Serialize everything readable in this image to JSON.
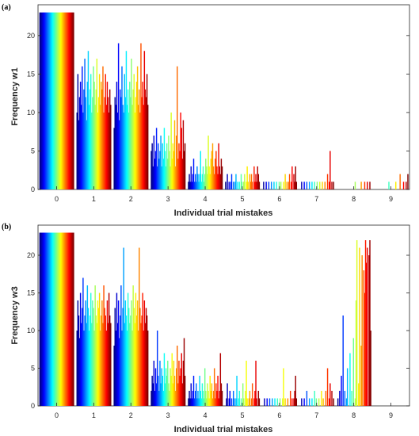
{
  "chart_data": [
    {
      "type": "bar",
      "panel_label": "(a)",
      "xlabel": "Individual trial mistakes",
      "ylabel": "Frequency w1",
      "categories": [
        "0",
        "1",
        "2",
        "3",
        "4",
        "5",
        "6",
        "7",
        "8",
        "9"
      ],
      "ylim": [
        0,
        24
      ],
      "yticks": [
        "0",
        "5",
        "10",
        "15",
        "20"
      ],
      "grid": false,
      "series_count": 40,
      "colormap": "jet (blue to dark red)",
      "bin_profiles": [
        [
          23,
          23,
          23,
          23,
          23,
          23,
          23,
          23,
          23,
          23,
          23,
          23,
          23,
          23,
          23,
          23,
          23,
          23,
          23,
          23,
          23,
          23,
          23,
          23,
          23,
          23,
          23,
          23,
          23,
          23,
          23,
          23,
          23,
          23,
          23,
          23,
          23,
          23,
          23,
          23
        ],
        [
          10,
          15,
          9,
          12,
          14,
          11,
          16,
          10,
          13,
          17,
          12,
          9,
          14,
          18,
          11,
          13,
          15,
          10,
          12,
          16,
          14,
          11,
          13,
          17,
          10,
          12,
          15,
          11,
          14,
          13,
          16,
          10,
          12,
          15,
          11,
          14,
          12,
          10,
          13,
          11
        ],
        [
          8,
          12,
          11,
          14,
          10,
          19,
          9,
          13,
          12,
          16,
          11,
          10,
          15,
          12,
          18,
          11,
          13,
          10,
          14,
          12,
          17,
          11,
          13,
          15,
          10,
          12,
          14,
          16,
          11,
          13,
          10,
          19,
          12,
          14,
          11,
          18,
          13,
          12,
          15,
          11
        ],
        [
          5,
          6,
          3,
          7,
          4,
          5,
          8,
          3,
          6,
          4,
          5,
          7,
          3,
          6,
          4,
          8,
          5,
          3,
          6,
          4,
          7,
          5,
          3,
          10,
          4,
          6,
          5,
          9,
          3,
          7,
          16,
          4,
          6,
          5,
          10,
          8,
          4,
          9,
          5,
          6
        ],
        [
          1,
          2,
          1,
          3,
          1,
          2,
          4,
          1,
          2,
          1,
          3,
          2,
          1,
          2,
          5,
          1,
          2,
          3,
          1,
          2,
          4,
          3,
          2,
          7,
          3,
          2,
          4,
          5,
          6,
          3,
          2,
          4,
          5,
          3,
          2,
          6,
          3,
          2,
          4,
          3
        ],
        [
          1,
          0,
          2,
          0,
          1,
          0,
          1,
          2,
          0,
          1,
          0,
          1,
          2,
          0,
          1,
          0,
          1,
          0,
          2,
          1,
          0,
          1,
          2,
          0,
          1,
          3,
          1,
          0,
          2,
          1,
          2,
          1,
          0,
          3,
          1,
          2,
          1,
          3,
          2,
          1
        ],
        [
          0,
          1,
          0,
          0,
          1,
          0,
          0,
          1,
          0,
          0,
          1,
          0,
          0,
          1,
          0,
          0,
          1,
          0,
          0,
          1,
          0,
          1,
          0,
          0,
          1,
          0,
          2,
          0,
          1,
          0,
          1,
          2,
          0,
          1,
          3,
          0,
          2,
          1,
          3,
          1
        ],
        [
          0,
          0,
          1,
          0,
          0,
          1,
          0,
          0,
          1,
          0,
          0,
          1,
          0,
          0,
          1,
          0,
          0,
          1,
          0,
          0,
          1,
          0,
          0,
          1,
          0,
          0,
          1,
          0,
          0,
          1,
          0,
          0,
          2,
          0,
          1,
          5,
          0,
          1,
          0,
          1
        ],
        [
          0,
          0,
          0,
          0,
          0,
          0,
          0,
          0,
          0,
          0,
          0,
          0,
          0,
          0,
          0,
          0,
          0,
          0,
          0,
          0,
          0,
          1,
          0,
          0,
          0,
          0,
          0,
          0,
          1,
          0,
          0,
          0,
          1,
          0,
          0,
          1,
          0,
          0,
          1,
          0
        ],
        [
          0,
          0,
          0,
          0,
          0,
          0,
          0,
          0,
          0,
          0,
          0,
          0,
          0,
          0,
          0,
          0,
          0,
          1,
          0,
          0,
          0,
          0,
          0,
          0,
          0,
          1,
          0,
          0,
          0,
          0,
          2,
          0,
          0,
          0,
          1,
          0,
          0,
          1,
          0,
          2
        ]
      ]
    },
    {
      "type": "bar",
      "panel_label": "(b)",
      "xlabel": "Individual trial mistakes",
      "ylabel": "Frequency w3",
      "categories": [
        "0",
        "1",
        "2",
        "3",
        "4",
        "5",
        "6",
        "7",
        "8",
        "9"
      ],
      "ylim": [
        0,
        24
      ],
      "yticks": [
        "0",
        "5",
        "10",
        "15",
        "20"
      ],
      "grid": false,
      "series_count": 40,
      "colormap": "jet (blue to dark red)",
      "bin_profiles": [
        [
          23,
          23,
          23,
          23,
          23,
          23,
          23,
          23,
          23,
          23,
          23,
          23,
          23,
          23,
          23,
          23,
          23,
          23,
          23,
          23,
          23,
          23,
          23,
          23,
          23,
          23,
          23,
          23,
          23,
          23,
          23,
          23,
          23,
          23,
          23,
          23,
          23,
          23,
          23,
          23
        ],
        [
          10,
          14,
          12,
          9,
          15,
          11,
          13,
          17,
          10,
          12,
          14,
          11,
          16,
          13,
          10,
          12,
          15,
          11,
          14,
          13,
          10,
          16,
          12,
          11,
          14,
          13,
          15,
          10,
          12,
          14,
          11,
          16,
          13,
          12,
          10,
          14,
          11,
          15,
          12,
          11
        ],
        [
          8,
          13,
          10,
          15,
          11,
          14,
          9,
          12,
          16,
          10,
          13,
          21,
          11,
          14,
          12,
          10,
          15,
          13,
          11,
          12,
          14,
          10,
          16,
          13,
          11,
          15,
          12,
          14,
          10,
          21,
          13,
          11,
          12,
          15,
          10,
          14,
          11,
          13,
          12,
          10
        ],
        [
          2,
          4,
          3,
          6,
          2,
          5,
          3,
          10,
          4,
          2,
          6,
          3,
          5,
          4,
          2,
          7,
          3,
          5,
          4,
          6,
          3,
          2,
          5,
          4,
          7,
          3,
          6,
          4,
          2,
          5,
          8,
          3,
          6,
          4,
          5,
          7,
          3,
          6,
          9,
          4
        ],
        [
          1,
          2,
          1,
          3,
          1,
          2,
          4,
          1,
          2,
          3,
          1,
          2,
          1,
          4,
          2,
          1,
          3,
          2,
          1,
          5,
          2,
          1,
          3,
          2,
          1,
          4,
          2,
          3,
          1,
          2,
          5,
          1,
          3,
          2,
          4,
          1,
          2,
          7,
          3,
          2
        ],
        [
          0,
          1,
          3,
          0,
          1,
          2,
          0,
          1,
          0,
          2,
          1,
          0,
          1,
          4,
          0,
          1,
          2,
          0,
          1,
          0,
          3,
          1,
          0,
          2,
          6,
          1,
          0,
          1,
          2,
          0,
          1,
          3,
          0,
          1,
          2,
          6,
          1,
          0,
          2,
          1
        ],
        [
          0,
          0,
          1,
          0,
          0,
          1,
          0,
          0,
          1,
          0,
          0,
          1,
          0,
          0,
          1,
          0,
          0,
          1,
          0,
          0,
          1,
          0,
          0,
          1,
          5,
          0,
          1,
          0,
          0,
          1,
          0,
          0,
          2,
          0,
          1,
          0,
          1,
          2,
          4,
          1
        ],
        [
          0,
          0,
          1,
          0,
          0,
          1,
          0,
          0,
          2,
          0,
          0,
          1,
          0,
          0,
          1,
          0,
          0,
          2,
          0,
          1,
          0,
          0,
          1,
          0,
          0,
          2,
          0,
          1,
          0,
          0,
          2,
          0,
          5,
          0,
          1,
          3,
          0,
          2,
          0,
          1
        ],
        [
          0,
          1,
          0,
          2,
          0,
          4,
          0,
          12,
          0,
          2,
          0,
          1,
          5,
          0,
          0,
          7,
          0,
          2,
          0,
          9,
          0,
          1,
          14,
          22,
          0,
          3,
          21,
          0,
          8,
          20,
          0,
          18,
          15,
          22,
          19,
          21,
          0,
          20,
          22,
          10
        ],
        [
          0,
          0,
          0,
          0,
          0,
          0,
          0,
          0,
          0,
          0,
          0,
          0,
          0,
          0,
          0,
          0,
          0,
          0,
          0,
          0,
          0,
          0,
          0,
          0,
          0,
          0,
          0,
          0,
          0,
          0,
          0,
          0,
          0,
          0,
          0,
          0,
          0,
          0,
          0,
          0
        ]
      ]
    }
  ]
}
